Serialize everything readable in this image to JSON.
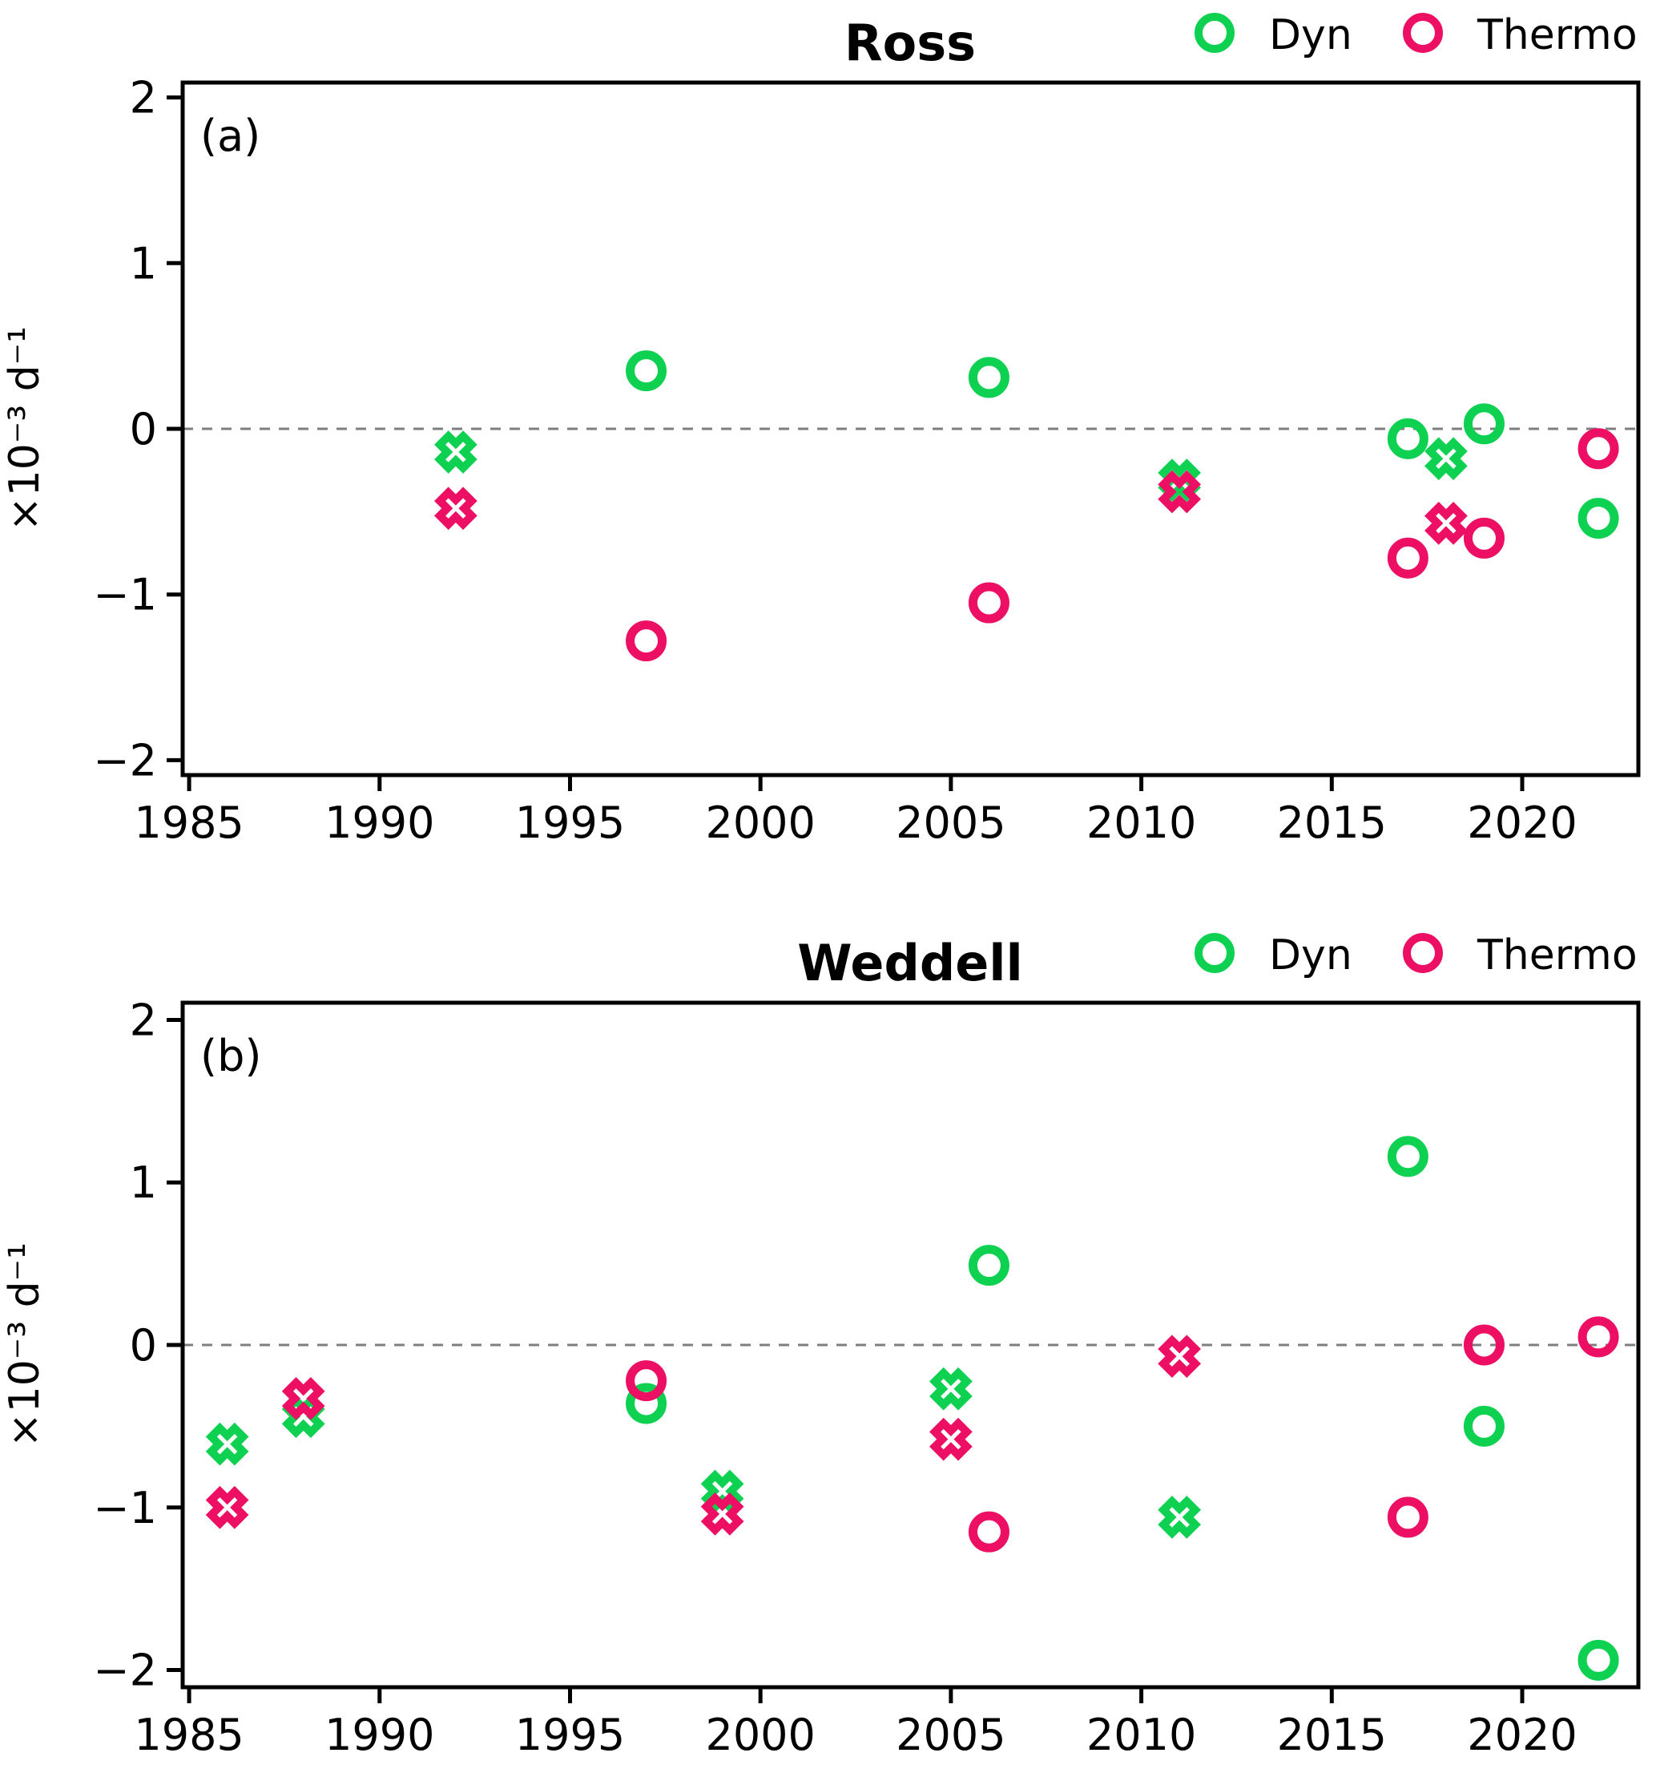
{
  "figure": {
    "y_axis_label": "×10⁻³ d⁻¹",
    "legend": {
      "dyn_label": "Dyn",
      "thermo_label": "Thermo"
    },
    "colors": {
      "dyn": "#0ed152",
      "thermo": "#ec0f63",
      "zero_line": "#7f7f7f",
      "axis": "#000000",
      "background": "#ffffff"
    }
  },
  "chart_data": [
    {
      "type": "scatter",
      "panel_label": "(a)",
      "title": "Ross",
      "xlabel": "",
      "ylabel": "×10⁻³ d⁻¹",
      "legend_entries": [
        "Dyn",
        "Thermo"
      ],
      "legend_position": "above-right",
      "grid": false,
      "zero_line": true,
      "x_ticks": [
        1985,
        1990,
        1995,
        2000,
        2005,
        2010,
        2015,
        2020
      ],
      "x_tick_labels": [
        "1985",
        "1990",
        "1995",
        "2000",
        "2005",
        "2010",
        "2015",
        "2020"
      ],
      "y_ticks": [
        2,
        1,
        0,
        -1,
        -2
      ],
      "y_tick_labels": [
        "2",
        "1",
        "0",
        "−1",
        "−2"
      ],
      "x_range": [
        1984.83,
        2023.05
      ],
      "y_range": [
        -2.09,
        2.09
      ],
      "series": [
        {
          "name": "Dyn",
          "color_key": "dyn",
          "points": [
            {
              "x": 1992,
              "y": -0.14,
              "marker": "x"
            },
            {
              "x": 1997,
              "y": 0.35,
              "marker": "circle"
            },
            {
              "x": 2006,
              "y": 0.31,
              "marker": "circle"
            },
            {
              "x": 2011,
              "y": -0.31,
              "marker": "x"
            },
            {
              "x": 2017,
              "y": -0.06,
              "marker": "circle"
            },
            {
              "x": 2018,
              "y": -0.18,
              "marker": "x"
            },
            {
              "x": 2019,
              "y": 0.03,
              "marker": "circle"
            },
            {
              "x": 2022,
              "y": -0.54,
              "marker": "circle"
            }
          ]
        },
        {
          "name": "Thermo",
          "color_key": "thermo",
          "points": [
            {
              "x": 1992,
              "y": -0.48,
              "marker": "x"
            },
            {
              "x": 1997,
              "y": -1.28,
              "marker": "circle"
            },
            {
              "x": 2006,
              "y": -1.05,
              "marker": "circle"
            },
            {
              "x": 2011,
              "y": -0.38,
              "marker": "x"
            },
            {
              "x": 2017,
              "y": -0.78,
              "marker": "circle"
            },
            {
              "x": 2018,
              "y": -0.57,
              "marker": "x"
            },
            {
              "x": 2019,
              "y": -0.66,
              "marker": "circle"
            },
            {
              "x": 2022,
              "y": -0.12,
              "marker": "circle"
            }
          ]
        }
      ]
    },
    {
      "type": "scatter",
      "panel_label": "(b)",
      "title": "Weddell",
      "xlabel": "",
      "ylabel": "×10⁻³ d⁻¹",
      "legend_entries": [
        "Dyn",
        "Thermo"
      ],
      "legend_position": "above-right",
      "grid": false,
      "zero_line": true,
      "x_ticks": [
        1985,
        1990,
        1995,
        2000,
        2005,
        2010,
        2015,
        2020
      ],
      "x_tick_labels": [
        "1985",
        "1990",
        "1995",
        "2000",
        "2005",
        "2010",
        "2015",
        "2020"
      ],
      "y_ticks": [
        2,
        1,
        0,
        -1,
        -2
      ],
      "y_tick_labels": [
        "2",
        "1",
        "0",
        "−1",
        "−2"
      ],
      "x_range": [
        1984.83,
        2023.05
      ],
      "y_range": [
        -2.106,
        2.106
      ],
      "series": [
        {
          "name": "Dyn",
          "color_key": "dyn",
          "points": [
            {
              "x": 1986,
              "y": -0.61,
              "marker": "x"
            },
            {
              "x": 1988,
              "y": -0.44,
              "marker": "x"
            },
            {
              "x": 1997,
              "y": -0.36,
              "marker": "circle"
            },
            {
              "x": 1999,
              "y": -0.9,
              "marker": "x"
            },
            {
              "x": 2005,
              "y": -0.27,
              "marker": "x"
            },
            {
              "x": 2006,
              "y": 0.49,
              "marker": "circle"
            },
            {
              "x": 2011,
              "y": -1.06,
              "marker": "x"
            },
            {
              "x": 2017,
              "y": 1.16,
              "marker": "circle"
            },
            {
              "x": 2019,
              "y": -0.5,
              "marker": "circle"
            },
            {
              "x": 2022,
              "y": -1.94,
              "marker": "circle"
            }
          ]
        },
        {
          "name": "Thermo",
          "color_key": "thermo",
          "points": [
            {
              "x": 1986,
              "y": -1.0,
              "marker": "x"
            },
            {
              "x": 1988,
              "y": -0.33,
              "marker": "x"
            },
            {
              "x": 1997,
              "y": -0.22,
              "marker": "circle"
            },
            {
              "x": 1999,
              "y": -1.04,
              "marker": "x"
            },
            {
              "x": 2005,
              "y": -0.58,
              "marker": "x"
            },
            {
              "x": 2006,
              "y": -1.15,
              "marker": "circle"
            },
            {
              "x": 2011,
              "y": -0.07,
              "marker": "x"
            },
            {
              "x": 2017,
              "y": -1.06,
              "marker": "circle"
            },
            {
              "x": 2019,
              "y": 0.0,
              "marker": "circle"
            },
            {
              "x": 2022,
              "y": 0.05,
              "marker": "circle"
            }
          ]
        }
      ]
    }
  ]
}
